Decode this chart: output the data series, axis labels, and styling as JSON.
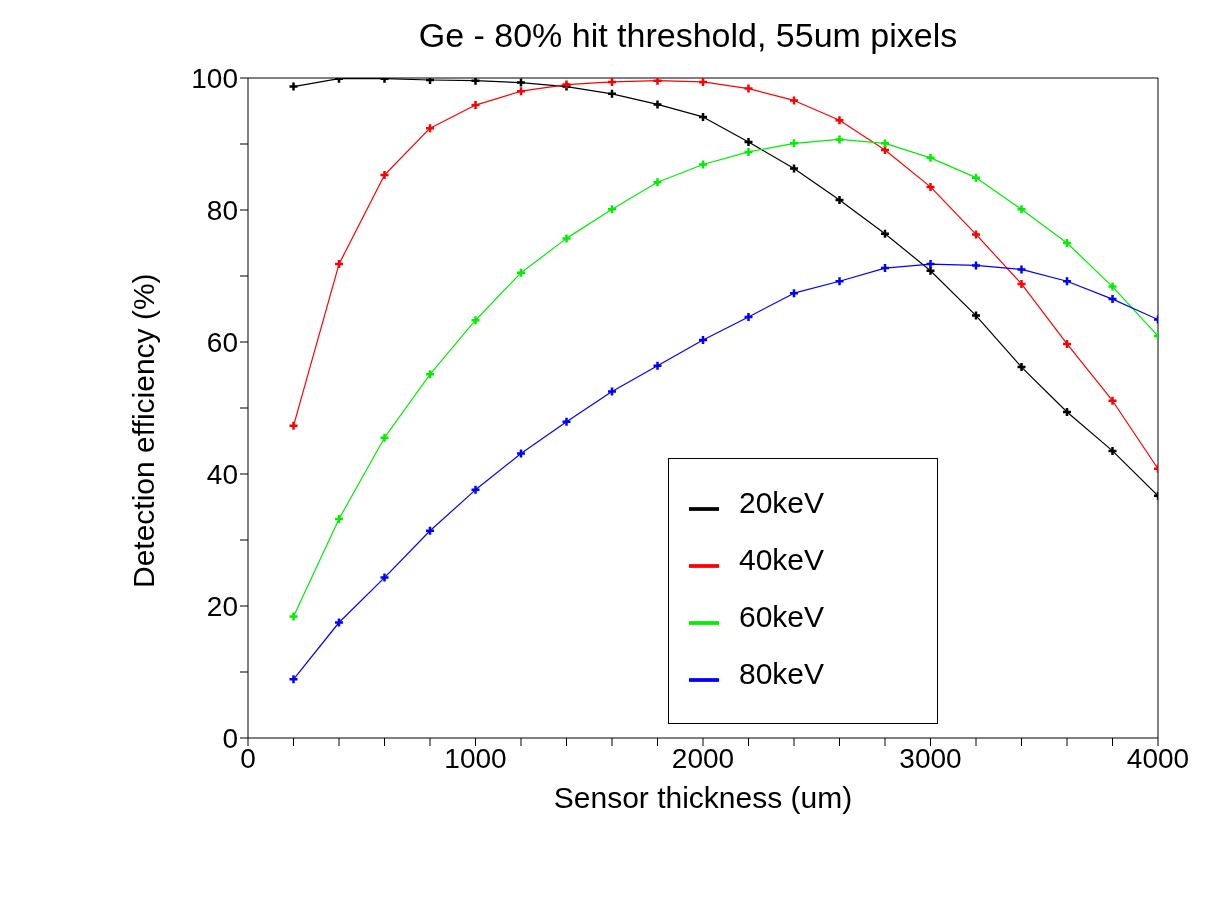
{
  "chart_data": {
    "type": "line",
    "title": "Ge - 80% hit threshold, 55um pixels",
    "xlabel": "Sensor thickness (um)",
    "ylabel": "Detection efficiency (%)",
    "x": [
      200,
      400,
      600,
      800,
      1000,
      1200,
      1400,
      1600,
      1800,
      2000,
      2200,
      2400,
      2600,
      2800,
      3000,
      3200,
      3400,
      3600,
      3800,
      4000
    ],
    "series": [
      {
        "name": "20keV",
        "color": "#000000",
        "values": [
          98.7,
          99.9,
          99.9,
          99.7,
          99.6,
          99.3,
          98.7,
          97.6,
          96.0,
          94.1,
          90.3,
          86.3,
          81.5,
          76.4,
          70.8,
          64.0,
          56.2,
          49.4,
          43.5,
          36.7
        ]
      },
      {
        "name": "40keV",
        "color": "#ff0000",
        "values": [
          47.3,
          71.8,
          85.3,
          92.4,
          95.9,
          98.0,
          99.0,
          99.4,
          99.6,
          99.4,
          98.4,
          96.6,
          93.6,
          89.1,
          83.5,
          76.3,
          68.8,
          59.7,
          51.1,
          40.8
        ]
      },
      {
        "name": "60keV",
        "color": "#00ee00",
        "values": [
          18.4,
          33.2,
          45.5,
          55.1,
          63.3,
          70.5,
          75.7,
          80.1,
          84.2,
          86.9,
          88.8,
          90.1,
          90.7,
          90.1,
          87.9,
          84.9,
          80.1,
          75.0,
          68.4,
          60.9
        ]
      },
      {
        "name": "80keV",
        "color": "#0000ff",
        "values": [
          8.9,
          17.5,
          24.3,
          31.4,
          37.6,
          43.1,
          47.9,
          52.5,
          56.4,
          60.3,
          63.8,
          67.4,
          69.2,
          71.2,
          71.8,
          71.6,
          71.0,
          69.2,
          66.5,
          63.4
        ]
      }
    ],
    "xlim": [
      0,
      4000
    ],
    "ylim": [
      0,
      100
    ],
    "xticks": [
      0,
      {
        "value": 200,
        "label": null
      },
      {
        "value": 400,
        "label": null
      },
      {
        "value": 600,
        "label": null
      },
      {
        "value": 800,
        "label": null
      },
      1000,
      {
        "value": 1200,
        "label": null
      },
      {
        "value": 1400,
        "label": null
      },
      {
        "value": 1600,
        "label": null
      },
      {
        "value": 1800,
        "label": null
      },
      2000,
      {
        "value": 2200,
        "label": null
      },
      {
        "value": 2400,
        "label": null
      },
      {
        "value": 2600,
        "label": null
      },
      {
        "value": 2800,
        "label": null
      },
      3000,
      {
        "value": 3200,
        "label": null
      },
      {
        "value": 3400,
        "label": null
      },
      {
        "value": 3600,
        "label": null
      },
      {
        "value": 3800,
        "label": null
      },
      4000
    ],
    "yticks": [
      0,
      {
        "value": 10,
        "label": null
      },
      20,
      {
        "value": 30,
        "label": null
      },
      40,
      {
        "value": 50,
        "label": null
      },
      60,
      {
        "value": 70,
        "label": null
      },
      80,
      {
        "value": 90,
        "label": null
      },
      100
    ],
    "legend": "bottom right",
    "marker": "cross",
    "line_style": "solid",
    "grid": false
  }
}
